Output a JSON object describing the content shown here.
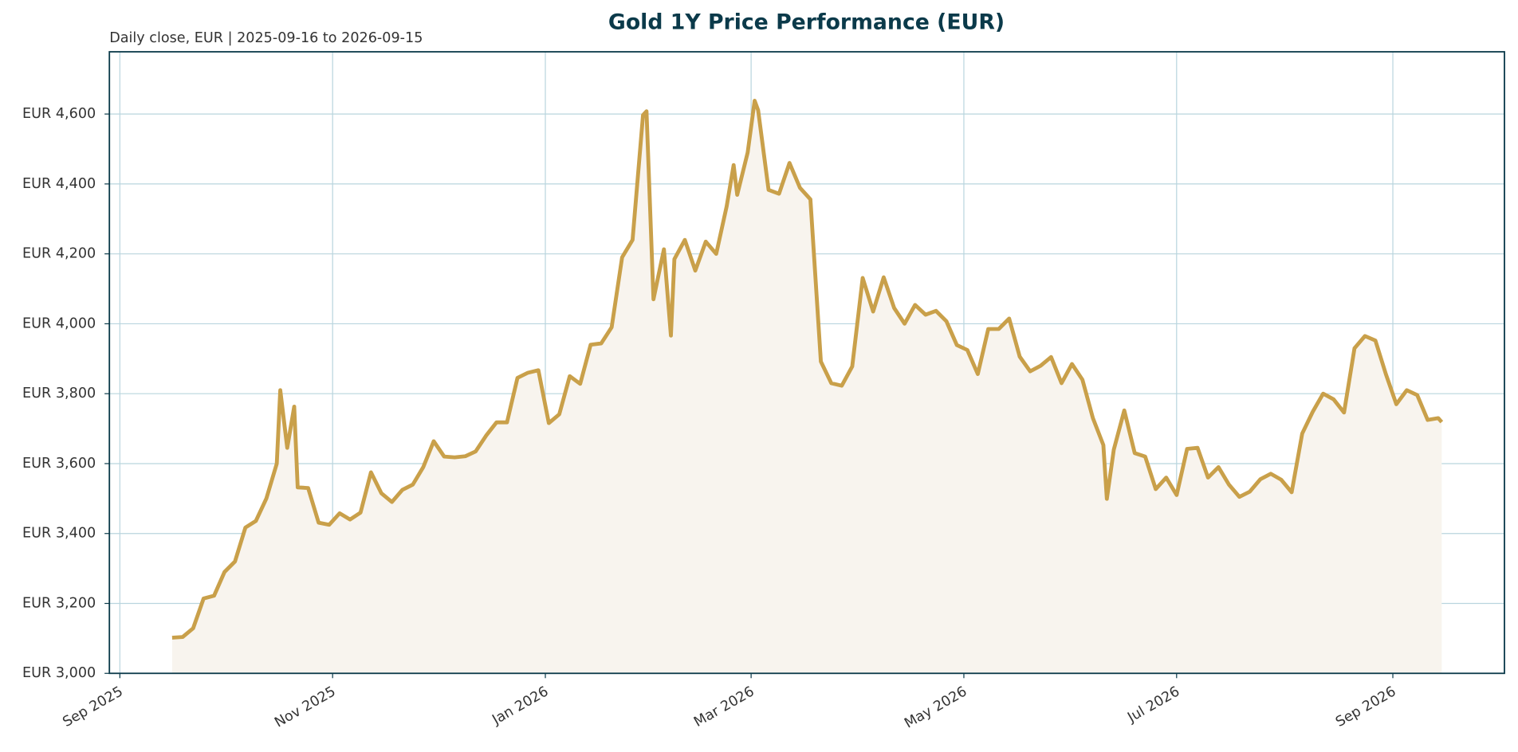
{
  "chart_data": {
    "type": "line",
    "title": "Gold 1Y Price Performance (EUR)",
    "subtitle": "Daily close, EUR | 2025-09-16 to 2026-09-15",
    "x": [
      "2025-09-16",
      "2025-09-19",
      "2025-09-22",
      "2025-09-25",
      "2025-09-28",
      "2025-10-01",
      "2025-10-04",
      "2025-10-07",
      "2025-10-10",
      "2025-10-13",
      "2025-10-16",
      "2025-10-17",
      "2025-10-19",
      "2025-10-21",
      "2025-10-22",
      "2025-10-25",
      "2025-10-28",
      "2025-10-31",
      "2025-11-03",
      "2025-11-06",
      "2025-11-09",
      "2025-11-12",
      "2025-11-15",
      "2025-11-18",
      "2025-11-21",
      "2025-11-24",
      "2025-11-27",
      "2025-11-30",
      "2025-12-03",
      "2025-12-06",
      "2025-12-09",
      "2025-12-12",
      "2025-12-15",
      "2025-12-18",
      "2025-12-21",
      "2025-12-24",
      "2025-12-27",
      "2025-12-30",
      "2026-01-02",
      "2026-01-05",
      "2026-01-08",
      "2026-01-11",
      "2026-01-14",
      "2026-01-17",
      "2026-01-20",
      "2026-01-23",
      "2026-01-26",
      "2026-01-29",
      "2026-01-30",
      "2026-02-01",
      "2026-02-04",
      "2026-02-06",
      "2026-02-07",
      "2026-02-10",
      "2026-02-13",
      "2026-02-16",
      "2026-02-19",
      "2026-02-22",
      "2026-02-24",
      "2026-02-25",
      "2026-02-28",
      "2026-03-02",
      "2026-03-03",
      "2026-03-06",
      "2026-03-09",
      "2026-03-12",
      "2026-03-15",
      "2026-03-18",
      "2026-03-21",
      "2026-03-24",
      "2026-03-27",
      "2026-03-30",
      "2026-04-02",
      "2026-04-05",
      "2026-04-08",
      "2026-04-11",
      "2026-04-14",
      "2026-04-17",
      "2026-04-20",
      "2026-04-23",
      "2026-04-26",
      "2026-04-29",
      "2026-05-02",
      "2026-05-05",
      "2026-05-08",
      "2026-05-11",
      "2026-05-14",
      "2026-05-17",
      "2026-05-20",
      "2026-05-23",
      "2026-05-26",
      "2026-05-29",
      "2026-06-01",
      "2026-06-04",
      "2026-06-07",
      "2026-06-10",
      "2026-06-11",
      "2026-06-13",
      "2026-06-16",
      "2026-06-19",
      "2026-06-22",
      "2026-06-25",
      "2026-06-28",
      "2026-07-01",
      "2026-07-04",
      "2026-07-07",
      "2026-07-10",
      "2026-07-13",
      "2026-07-16",
      "2026-07-19",
      "2026-07-22",
      "2026-07-25",
      "2026-07-28",
      "2026-07-31",
      "2026-08-03",
      "2026-08-06",
      "2026-08-09",
      "2026-08-12",
      "2026-08-15",
      "2026-08-18",
      "2026-08-21",
      "2026-08-24",
      "2026-08-27",
      "2026-08-30",
      "2026-09-02",
      "2026-09-05",
      "2026-09-08",
      "2026-09-11",
      "2026-09-14",
      "2026-09-15"
    ],
    "series": [
      {
        "name": "Gold",
        "color": "#c9a04a",
        "fill": "#f8f4ee",
        "values": [
          3102,
          3104,
          3129,
          3214,
          3222,
          3290,
          3320,
          3417,
          3436,
          3500,
          3600,
          3810,
          3645,
          3763,
          3532,
          3530,
          3431,
          3425,
          3458,
          3440,
          3460,
          3575,
          3515,
          3490,
          3525,
          3540,
          3590,
          3664,
          3620,
          3618,
          3621,
          3635,
          3680,
          3718,
          3718,
          3845,
          3860,
          3867,
          3716,
          3741,
          3850,
          3828,
          3940,
          3944,
          3990,
          4190,
          4240,
          4597,
          4608,
          4070,
          4213,
          3966,
          4185,
          4240,
          4152,
          4235,
          4200,
          4336,
          4454,
          4369,
          4490,
          4638,
          4611,
          4383,
          4372,
          4460,
          4389,
          4356,
          3892,
          3830,
          3823,
          3878,
          4131,
          4035,
          4133,
          4045,
          4000,
          4054,
          4026,
          4037,
          4007,
          3939,
          3925,
          3856,
          3985,
          3985,
          4015,
          3906,
          3864,
          3880,
          3905,
          3830,
          3885,
          3840,
          3730,
          3653,
          3499,
          3640,
          3752,
          3630,
          3620,
          3527,
          3560,
          3510,
          3642,
          3645,
          3560,
          3590,
          3540,
          3505,
          3520,
          3555,
          3571,
          3554,
          3518,
          3686,
          3748,
          3800,
          3784,
          3746,
          3930,
          3965,
          3952,
          3856,
          3770,
          3810,
          3796,
          3725,
          3730,
          3719
        ]
      }
    ],
    "xlim": [
      "2025-08-29",
      "2026-10-03"
    ],
    "xticks": [
      {
        "value": "2025-09-01",
        "label": "Sep 2025"
      },
      {
        "value": "2025-11-01",
        "label": "Nov 2025"
      },
      {
        "value": "2026-01-01",
        "label": "Jan 2026"
      },
      {
        "value": "2026-03-01",
        "label": "Mar 2026"
      },
      {
        "value": "2026-05-01",
        "label": "May 2026"
      },
      {
        "value": "2026-07-01",
        "label": "Jul 2026"
      },
      {
        "value": "2026-09-01",
        "label": "Sep 2026"
      }
    ],
    "ylim": [
      3000,
      4778
    ],
    "yticks": [
      {
        "value": 3000,
        "label": "EUR 3,000"
      },
      {
        "value": 3200,
        "label": "EUR 3,200"
      },
      {
        "value": 3400,
        "label": "EUR 3,400"
      },
      {
        "value": 3600,
        "label": "EUR 3,600"
      },
      {
        "value": 3800,
        "label": "EUR 3,800"
      },
      {
        "value": 4000,
        "label": "EUR 4,000"
      },
      {
        "value": 4200,
        "label": "EUR 4,200"
      },
      {
        "value": 4400,
        "label": "EUR 4,400"
      },
      {
        "value": 4600,
        "label": "EUR 4,600"
      }
    ],
    "grid": true
  }
}
